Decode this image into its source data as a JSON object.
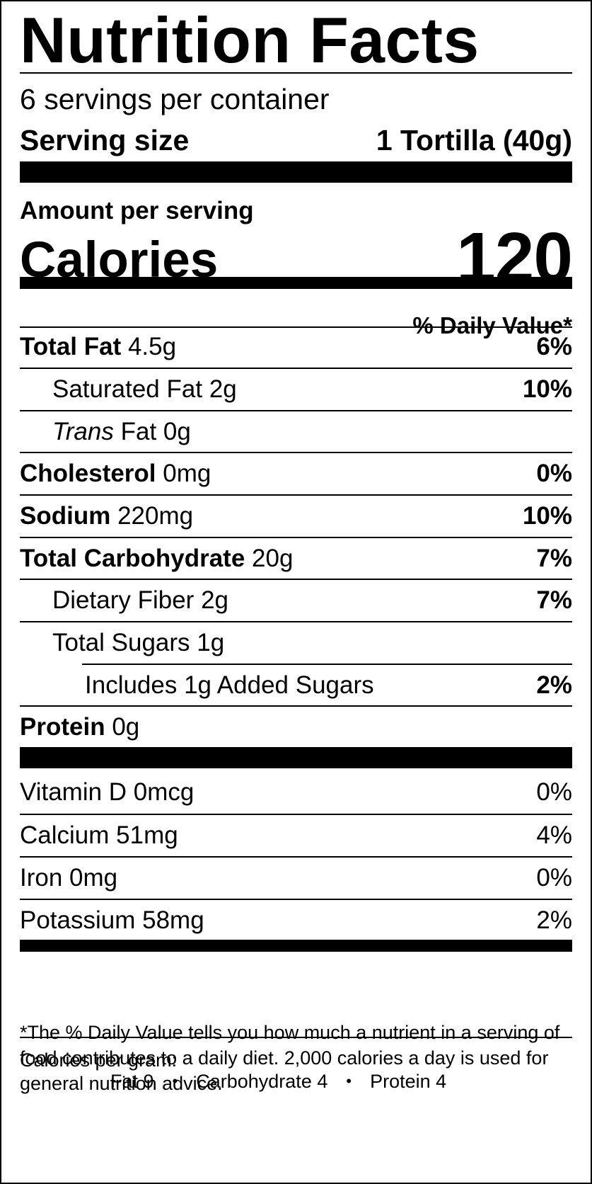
{
  "title": "Nutrition Facts",
  "servings_per_container": "6 servings per container",
  "serving_size": {
    "label": "Serving size",
    "value": "1 Tortilla (40g)"
  },
  "amount_per_serving": "Amount per serving",
  "calories": {
    "label": "Calories",
    "value": "120"
  },
  "daily_value_header": "% Daily Value*",
  "nutrients": [
    {
      "name": "Total Fat",
      "amount": "4.5g",
      "dv": "6%"
    },
    {
      "name": "Saturated Fat",
      "amount": "2g",
      "dv": "10%"
    },
    {
      "name_italic": "Trans",
      "name": "Fat",
      "amount": "0g",
      "dv": ""
    },
    {
      "name": "Cholesterol",
      "amount": "0mg",
      "dv": "0%"
    },
    {
      "name": "Sodium",
      "amount": "220mg",
      "dv": "10%"
    },
    {
      "name": "Total Carbohydrate",
      "amount": "20g",
      "dv": "7%"
    },
    {
      "name": "Dietary Fiber",
      "amount": "2g",
      "dv": "7%"
    },
    {
      "name": "Total Sugars",
      "amount": "1g",
      "dv": ""
    },
    {
      "text": "Includes 1g Added Sugars",
      "dv": "2%"
    },
    {
      "name": "Protein",
      "amount": "0g",
      "dv": ""
    }
  ],
  "vitamins": [
    {
      "text": "Vitamin D 0mcg",
      "dv": "0%"
    },
    {
      "text": "Calcium 51mg",
      "dv": "4%"
    },
    {
      "text": "Iron 0mg",
      "dv": "0%"
    },
    {
      "text": "Potassium 58mg",
      "dv": "2%"
    }
  ],
  "footnote": "*The % Daily Value tells you how much a nutrient in a serving of food contributes to a daily diet. 2,000 calories a day is used for general nutrition advice.",
  "calories_per_gram": {
    "label": "Calories per gram:",
    "fat": "Fat 9",
    "carbohydrate": "Carbohydrate 4",
    "protein": "Protein 4",
    "separator": "•"
  }
}
